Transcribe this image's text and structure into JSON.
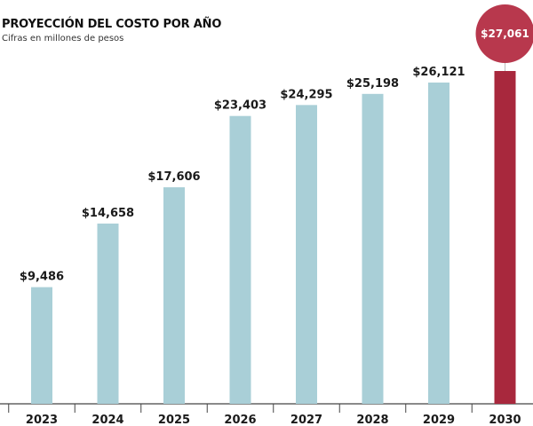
{
  "header": {
    "title": "PROYECCIÓN DEL COSTO POR AÑO",
    "subtitle": "Cifras en millones de pesos"
  },
  "colors": {
    "bar": "#a9cfd7",
    "highlight_bar": "#a8283d",
    "bubble": "#b8384d",
    "axis": "#444444",
    "text": "#1a1a1a"
  },
  "chart_data": {
    "type": "bar",
    "title": "PROYECCIÓN DEL COSTO POR AÑO",
    "subtitle": "Cifras en millones de pesos",
    "categories": [
      "2023",
      "2024",
      "2025",
      "2026",
      "2027",
      "2028",
      "2029",
      "2030"
    ],
    "values": [
      9486,
      14658,
      17606,
      23403,
      24295,
      25198,
      26121,
      27061
    ],
    "value_labels": [
      "$9,486",
      "$14,658",
      "$17,606",
      "$23,403",
      "$24,295",
      "$25,198",
      "$26,121",
      "$27,061"
    ],
    "highlight_index": 7,
    "xlabel": "",
    "ylabel": "",
    "ylim": [
      0,
      27061
    ],
    "grid": false,
    "legend": "none"
  }
}
